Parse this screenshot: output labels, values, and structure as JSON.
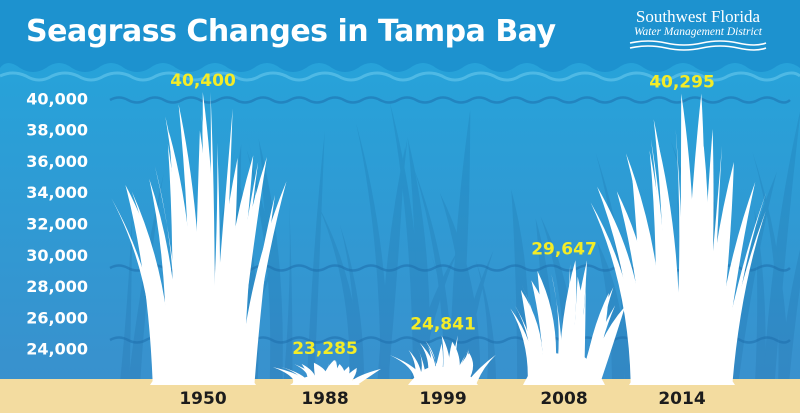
{
  "header": {
    "title": "Seagrass Changes in Tampa Bay"
  },
  "logo": {
    "name": "Southwest Florida",
    "subtitle": "Water Management District"
  },
  "colors": {
    "water_top": "#23a6dc",
    "water_bottom": "#3b8fcc",
    "header_band": "#1d92cf",
    "sand": "#f3dca0",
    "grass": "#ffffff",
    "label_yellow": "#f4ec27",
    "axis_text": "#ffffff",
    "year_text": "#1c1c1c"
  },
  "chart_data": {
    "type": "bar",
    "title": "Seagrass Changes in Tampa Bay",
    "xlabel": "",
    "ylabel": "",
    "categories": [
      "1950",
      "1988",
      "1999",
      "2008",
      "2014"
    ],
    "values": [
      40400,
      23285,
      24841,
      29647,
      40295
    ],
    "data_labels": [
      "40,400",
      "23,285",
      "24,841",
      "29,647",
      "40,295"
    ],
    "yticks": [
      24000,
      26000,
      28000,
      30000,
      32000,
      34000,
      36000,
      38000,
      40000
    ],
    "ytick_labels": [
      "24,000",
      "26,000",
      "28,000",
      "30,000",
      "32,000",
      "34,000",
      "36,000",
      "38,000",
      "40,000"
    ],
    "ylim": [
      22000,
      40400
    ],
    "grid": false,
    "legend": "none",
    "mark_style": "seagrass blade clusters"
  }
}
